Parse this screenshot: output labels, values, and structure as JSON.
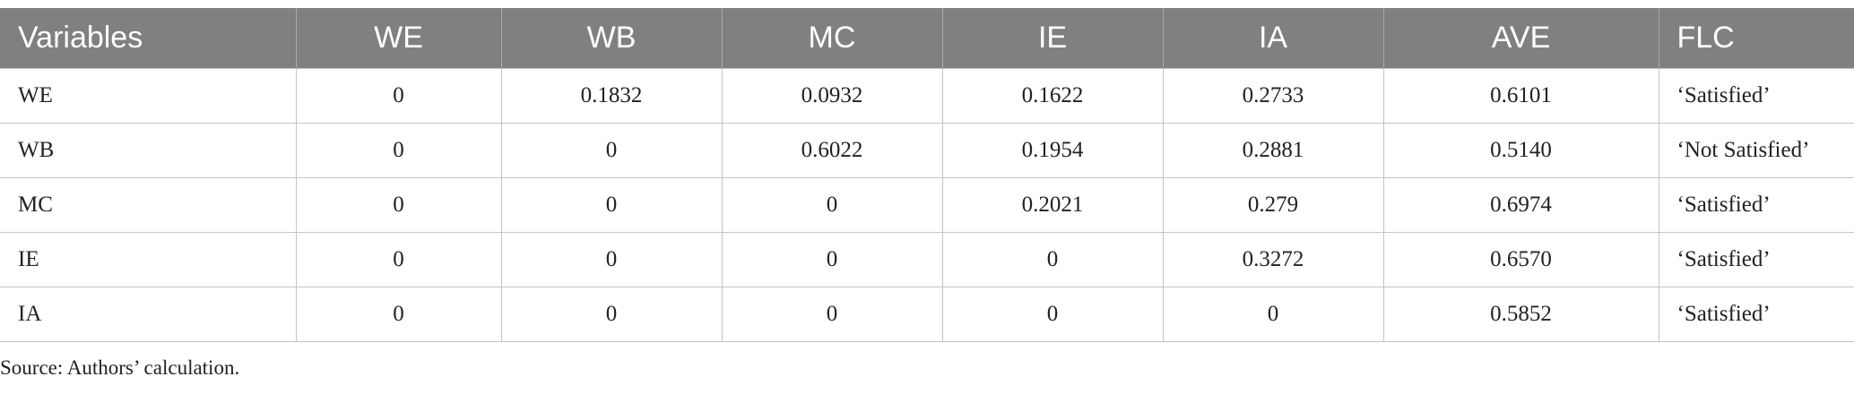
{
  "table": {
    "header": [
      "Variables",
      "WE",
      "WB",
      "MC",
      "IE",
      "IA",
      "AVE",
      "FLC"
    ],
    "rows": [
      [
        "WE",
        "0",
        "0.1832",
        "0.0932",
        "0.1622",
        "0.2733",
        "0.6101",
        "‘Satisfied’"
      ],
      [
        "WB",
        "0",
        "0",
        "0.6022",
        "0.1954",
        "0.2881",
        "0.5140",
        "‘Not Satisfied’"
      ],
      [
        "MC",
        "0",
        "0",
        "0",
        "0.2021",
        "0.279",
        "0.6974",
        "‘Satisfied’"
      ],
      [
        "IE",
        "0",
        "0",
        "0",
        "0",
        "0.3272",
        "0.6570",
        "‘Satisfied’"
      ],
      [
        "IA",
        "0",
        "0",
        "0",
        "0",
        "0",
        "0.5852",
        "‘Satisfied’"
      ]
    ]
  },
  "source": "Source: Authors’ calculation."
}
